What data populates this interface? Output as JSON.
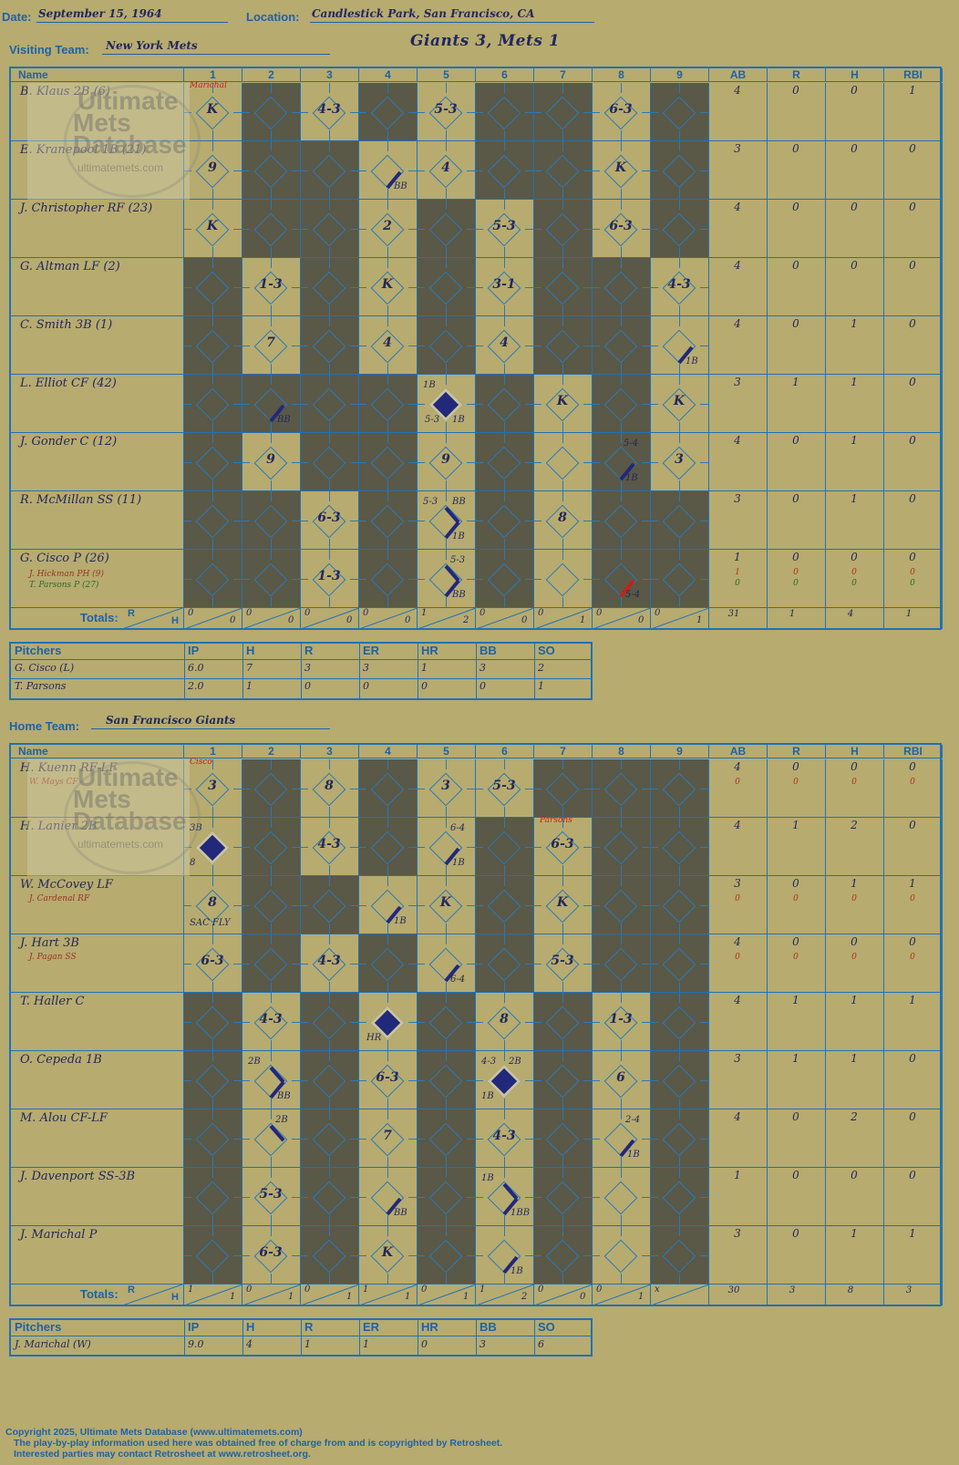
{
  "header": {
    "date_label": "Date:",
    "date_value": "September 15, 1964",
    "location_label": "Location:",
    "location_value": "Candlestick Park, San Francisco, CA",
    "game_title": "Giants 3, Mets 1"
  },
  "visiting": {
    "team_label": "Visiting Team:",
    "team_name": "New York Mets",
    "columns": [
      "Name",
      "1",
      "2",
      "3",
      "4",
      "5",
      "6",
      "7",
      "8",
      "9",
      "AB",
      "R",
      "H",
      "RBI"
    ],
    "players": [
      {
        "name": "B. Klaus 2B (6)",
        "sub": "",
        "sub2": "",
        "stats": [
          "4",
          "0",
          "0",
          "1"
        ]
      },
      {
        "name": "E. Kranepool 1B (21)",
        "sub": "",
        "sub2": "",
        "stats": [
          "3",
          "0",
          "0",
          "0"
        ]
      },
      {
        "name": "J. Christopher RF (23)",
        "sub": "",
        "sub2": "",
        "stats": [
          "4",
          "0",
          "0",
          "0"
        ]
      },
      {
        "name": "G. Altman LF (2)",
        "sub": "",
        "sub2": "",
        "stats": [
          "4",
          "0",
          "0",
          "0"
        ]
      },
      {
        "name": "C. Smith 3B (1)",
        "sub": "",
        "sub2": "",
        "stats": [
          "4",
          "0",
          "1",
          "0"
        ]
      },
      {
        "name": "L. Elliot CF (42)",
        "sub": "",
        "sub2": "",
        "stats": [
          "3",
          "1",
          "1",
          "0"
        ]
      },
      {
        "name": "J. Gonder C (12)",
        "sub": "",
        "sub2": "",
        "stats": [
          "4",
          "0",
          "1",
          "0"
        ]
      },
      {
        "name": "R. McMillan SS (11)",
        "sub": "",
        "sub2": "",
        "stats": [
          "3",
          "0",
          "1",
          "0"
        ]
      },
      {
        "name": "G. Cisco P (26)",
        "sub": "J. Hickman PH (9)",
        "sub2": "T. Parsons P (27)",
        "stats": [
          "1",
          "0",
          "0",
          "0"
        ],
        "sub_stats": [
          "1",
          "0",
          "0",
          "0"
        ],
        "sub2_stats": [
          "0",
          "0",
          "0",
          "0"
        ]
      }
    ],
    "plays": {
      "0-0": "K",
      "0-2": "4-3",
      "0-4": "5-3",
      "0-7": "6-3",
      "1-0": "9",
      "1-4": "4",
      "1-7": "K",
      "2-0": "K",
      "2-3": "2",
      "2-5": "5-3",
      "2-7": "6-3",
      "3-1": "1-3",
      "3-3": "K",
      "3-5": "3-1",
      "3-8": "4-3",
      "4-1": "7",
      "4-3": "4",
      "4-5": "4",
      "5-6": "K",
      "5-8": "K",
      "6-1": "9",
      "6-4": "9",
      "6-8": "3",
      "7-2": "6-3",
      "7-6": "8",
      "8-2": "1-3"
    },
    "notes": {
      "0-0": "Marichal",
      "1-3": "BB",
      "4-8": "1B",
      "5-1": "BB",
      "5-4a": "1B",
      "5-4b": "5-3",
      "5-4c": "1B",
      "6-7a": "5-4",
      "6-7b": "1B",
      "7-4a": "5-3",
      "7-4b": "BB",
      "7-4c": "1B",
      "8-4a": "5-3",
      "8-4b": "BB",
      "8-7": "5-4"
    },
    "totals_label": "Totals:",
    "totals_r_label": "R",
    "totals_h_label": "H",
    "inning_totals": [
      [
        "0",
        "0"
      ],
      [
        "0",
        "0"
      ],
      [
        "0",
        "0"
      ],
      [
        "0",
        "0"
      ],
      [
        "1",
        "2"
      ],
      [
        "0",
        "0"
      ],
      [
        "0",
        "1"
      ],
      [
        "0",
        "0"
      ],
      [
        "0",
        "1"
      ]
    ],
    "sum_totals": [
      "31",
      "1",
      "4",
      "1"
    ]
  },
  "visiting_pitchers": {
    "header": [
      "Pitchers",
      "IP",
      "H",
      "R",
      "ER",
      "HR",
      "BB",
      "SO"
    ],
    "rows": [
      [
        "G. Cisco (L)",
        "6.0",
        "7",
        "3",
        "3",
        "1",
        "3",
        "2"
      ],
      [
        "T. Parsons",
        "2.0",
        "1",
        "0",
        "0",
        "0",
        "0",
        "1"
      ]
    ]
  },
  "home": {
    "team_label": "Home Team:",
    "team_name": "San Francisco Giants",
    "players": [
      {
        "name": "H. Kuenn RF-LF",
        "sub": "W. Mays CF",
        "stats": [
          "4",
          "0",
          "0",
          "0"
        ],
        "sub_stats": [
          "0",
          "0",
          "0",
          "0"
        ]
      },
      {
        "name": "H. Lanier 2B",
        "sub": "",
        "stats": [
          "4",
          "1",
          "2",
          "0"
        ]
      },
      {
        "name": "W. McCovey LF",
        "sub": "J. Cardenal RF",
        "stats": [
          "3",
          "0",
          "1",
          "1"
        ],
        "sub_stats": [
          "0",
          "0",
          "0",
          "0"
        ]
      },
      {
        "name": "J. Hart 3B",
        "sub": "J. Pagan SS",
        "stats": [
          "4",
          "0",
          "0",
          "0"
        ],
        "sub_stats": [
          "0",
          "0",
          "0",
          "0"
        ]
      },
      {
        "name": "T. Haller C",
        "sub": "",
        "stats": [
          "4",
          "1",
          "1",
          "1"
        ]
      },
      {
        "name": "O. Cepeda 1B",
        "sub": "",
        "stats": [
          "3",
          "1",
          "1",
          "0"
        ]
      },
      {
        "name": "M. Alou CF-LF",
        "sub": "",
        "stats": [
          "4",
          "0",
          "2",
          "0"
        ]
      },
      {
        "name": "J. Davenport SS-3B",
        "sub": "",
        "stats": [
          "1",
          "0",
          "0",
          "0"
        ]
      },
      {
        "name": "J. Marichal P",
        "sub": "",
        "stats": [
          "3",
          "0",
          "1",
          "1"
        ]
      }
    ],
    "plays": {
      "0-0": "3",
      "0-2": "8",
      "0-4": "3",
      "0-5": "5-3",
      "1-2": "4-3",
      "1-6": "6-3",
      "2-0": "8",
      "2-4": "K",
      "2-6": "K",
      "3-0": "6-3",
      "3-2": "4-3",
      "3-6": "5-3",
      "4-1": "4-3",
      "4-5": "8",
      "4-7": "1-3",
      "5-3": "6-3",
      "5-7": "6",
      "6-3": "7",
      "6-5": "4-3",
      "7-1": "5-3",
      "8-1": "6-3",
      "8-3": "K"
    },
    "notes": {
      "0-0": "Cisco",
      "1-0a": "3B",
      "1-0b": "8",
      "1-4a": "6-4",
      "1-4b": "1B",
      "1-6": "Parsons",
      "2-0": "SAC FLY",
      "2-3": "1B",
      "3-4": "6-4",
      "4-3": "HR",
      "5-1a": "2B",
      "5-1b": "BB",
      "5-5a": "4-3",
      "5-5b": "2B",
      "5-5c": "1B",
      "6-1": "2B",
      "6-7a": "2-4",
      "6-7b": "1B",
      "7-3": "BB",
      "7-5a": "1B",
      "7-5b": "1BB",
      "8-5": "1B"
    },
    "totals_label": "Totals:",
    "totals_r_label": "R",
    "totals_h_label": "H",
    "inning_totals": [
      [
        "1",
        "1"
      ],
      [
        "0",
        "1"
      ],
      [
        "0",
        "1"
      ],
      [
        "1",
        "1"
      ],
      [
        "0",
        "1"
      ],
      [
        "1",
        "2"
      ],
      [
        "0",
        "0"
      ],
      [
        "0",
        "1"
      ],
      [
        "x",
        ""
      ]
    ],
    "sum_totals": [
      "30",
      "3",
      "8",
      "3"
    ]
  },
  "home_pitchers": {
    "header": [
      "Pitchers",
      "IP",
      "H",
      "R",
      "ER",
      "HR",
      "BB",
      "SO"
    ],
    "rows": [
      [
        "J. Marichal (W)",
        "9.0",
        "4",
        "1",
        "1",
        "0",
        "3",
        "6"
      ]
    ]
  },
  "watermark": {
    "line1": "Ultimate",
    "line2": "Mets",
    "line3": "Database",
    "url": "ultimatemets.com"
  },
  "footer": {
    "line1": "Copyright 2025, Ultimate Mets Database (www.ultimatemets.com)",
    "line2": "The play-by-play information used here was obtained free of charge from and is copyrighted by Retrosheet.",
    "line3": "Interested parties may contact Retrosheet at www.retrosheet.org."
  },
  "colors": {
    "background": "#b7ab6f",
    "grid": "#1f72b6",
    "dark": "#5a5847",
    "ink": "#22285c",
    "red": "#c8201c"
  }
}
